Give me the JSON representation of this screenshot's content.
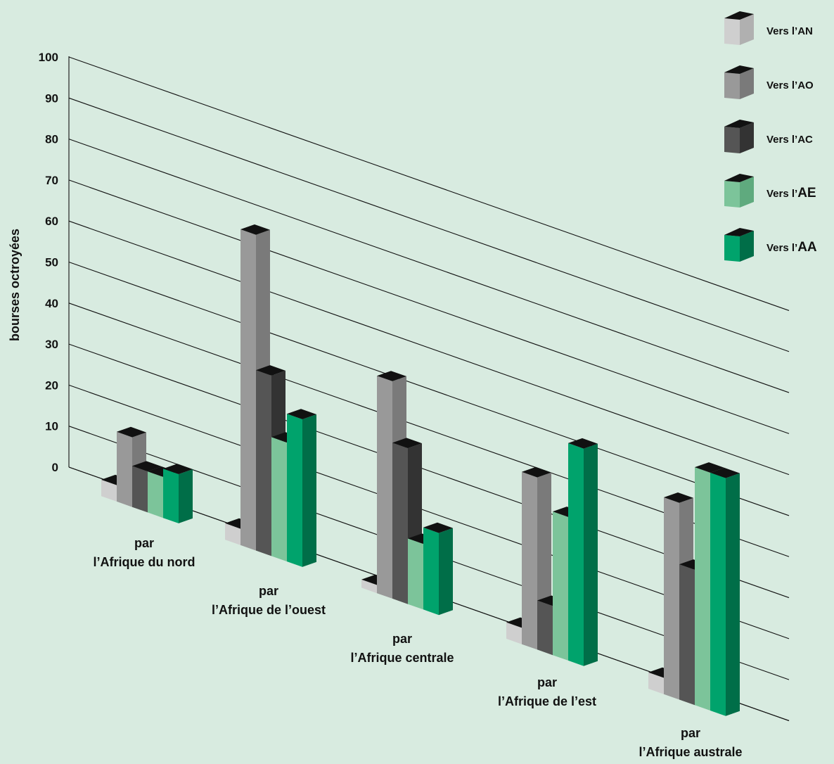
{
  "chart_data": {
    "type": "bar",
    "ylabel": "bourses octroyées",
    "ylim": [
      0,
      100
    ],
    "yticks": [
      0,
      10,
      20,
      30,
      40,
      50,
      60,
      70,
      80,
      90,
      100
    ],
    "categories": [
      {
        "line1": "par",
        "line2": "l’Afrique du nord"
      },
      {
        "line1": "par",
        "line2": "l’Afrique de l’ouest"
      },
      {
        "line1": "par",
        "line2": "l’Afrique centrale"
      },
      {
        "line1": "par",
        "line2": "l’Afrique de l’est"
      },
      {
        "line1": "par",
        "line2": "l’Afrique australe"
      }
    ],
    "series": [
      {
        "name": "Vers l’AN",
        "prefix": "Vers l’",
        "suffix": "AN",
        "values": [
          4,
          4,
          2,
          4,
          4
        ],
        "colors": {
          "front": "#cfcfcf",
          "side": "#b0b0b0"
        }
      },
      {
        "name": "Vers l’AO",
        "prefix": "Vers l’",
        "suffix": "AO",
        "values": [
          17,
          77,
          53,
          42,
          48
        ],
        "colors": {
          "front": "#999999",
          "side": "#7a7a7a"
        }
      },
      {
        "name": "Vers l’AC",
        "prefix": "Vers l’",
        "suffix": "AC",
        "values": [
          10,
          44,
          38,
          12,
          33
        ],
        "colors": {
          "front": "#555555",
          "side": "#333333"
        }
      },
      {
        "name": "Vers l’AE",
        "prefix": "Vers l’",
        "suffix": "AE",
        "values": [
          10,
          29,
          16,
          35,
          58
        ],
        "colors": {
          "front": "#7cc49a",
          "side": "#5faa7e"
        }
      },
      {
        "name": "Vers l’AA",
        "prefix": "Vers l’",
        "suffix": "AA",
        "values": [
          12,
          36,
          20,
          53,
          58
        ],
        "colors": {
          "front": "#00a36c",
          "side": "#006e48"
        }
      }
    ],
    "legend_position": "top-right",
    "grid": true
  }
}
